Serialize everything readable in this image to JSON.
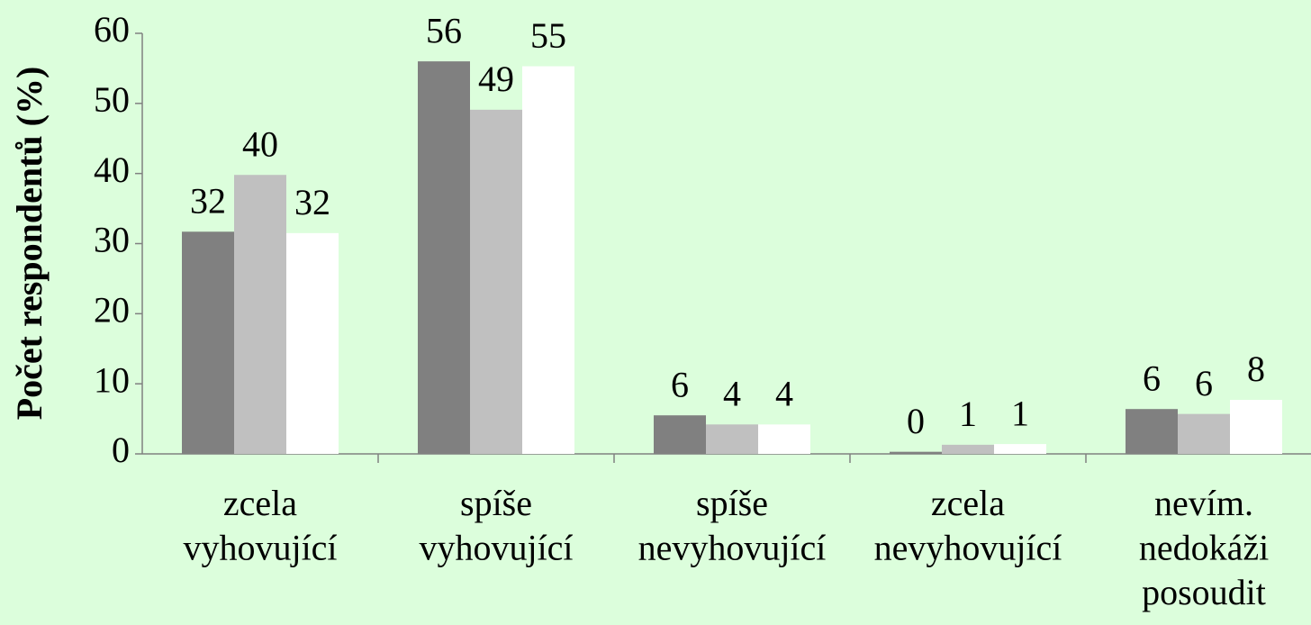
{
  "chart_data": {
    "type": "bar",
    "ylabel": "Počet respondentů (%)",
    "categories": [
      [
        "zcela",
        "vyhovující"
      ],
      [
        "spíše",
        "vyhovující"
      ],
      [
        "spíše",
        "nevyhovující"
      ],
      [
        "zcela",
        "nevyhovující"
      ],
      [
        "nevím.",
        "nedokáži",
        "posoudit"
      ]
    ],
    "series": [
      {
        "color": "#808080",
        "values": [
          31.7,
          56.0,
          5.5,
          0.3,
          6.4
        ],
        "value_labels": [
          "32",
          "56",
          "6",
          "0",
          "6"
        ]
      },
      {
        "color": "#c0c0c0",
        "values": [
          39.8,
          49.1,
          4.2,
          1.3,
          5.7
        ],
        "value_labels": [
          "40",
          "49",
          "4",
          "1",
          "6"
        ]
      },
      {
        "color": "#ffffff",
        "values": [
          31.5,
          55.3,
          4.2,
          1.4,
          7.7
        ],
        "value_labels": [
          "32",
          "55",
          "4",
          "1",
          "8"
        ]
      }
    ],
    "ylim": [
      0,
      60
    ],
    "yticks": [
      0,
      10,
      20,
      30,
      40,
      50,
      60
    ],
    "grid": false
  }
}
